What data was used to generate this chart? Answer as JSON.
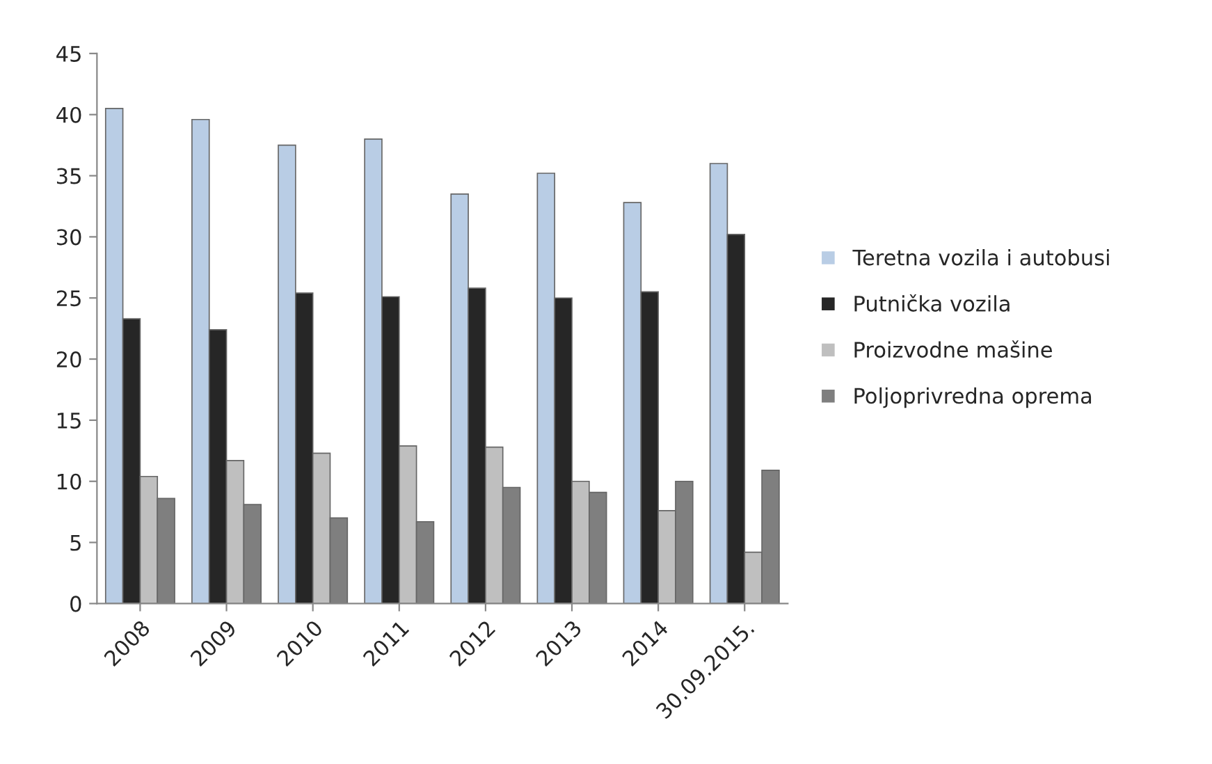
{
  "chart_data": {
    "type": "bar",
    "categories": [
      "2008",
      "2009",
      "2010",
      "2011",
      "2012",
      "2013",
      "2014",
      "30.09.2015."
    ],
    "series": [
      {
        "name": "Teretna vozila i autobusi",
        "color": "#b9cde5",
        "values": [
          40.5,
          39.6,
          37.5,
          38,
          33.5,
          35.2,
          32.8,
          36
        ]
      },
      {
        "name": "Putnička vozila",
        "color": "#262626",
        "values": [
          23.3,
          22.4,
          25.4,
          25.1,
          25.8,
          25,
          25.5,
          30.2
        ]
      },
      {
        "name": "Proizvodne mašine",
        "color": "#bfbfbf",
        "values": [
          10.4,
          11.7,
          12.3,
          12.9,
          12.8,
          10,
          7.6,
          4.2
        ]
      },
      {
        "name": "Poljoprivredna oprema",
        "color": "#7f7f7f",
        "values": [
          8.6,
          8.1,
          7,
          6.7,
          9.5,
          9.1,
          10,
          10.9
        ]
      }
    ],
    "ylim": [
      0,
      45
    ],
    "yticks": [
      0,
      5,
      10,
      15,
      20,
      25,
      30,
      35,
      40,
      45
    ],
    "grid": false,
    "legend": "right"
  }
}
